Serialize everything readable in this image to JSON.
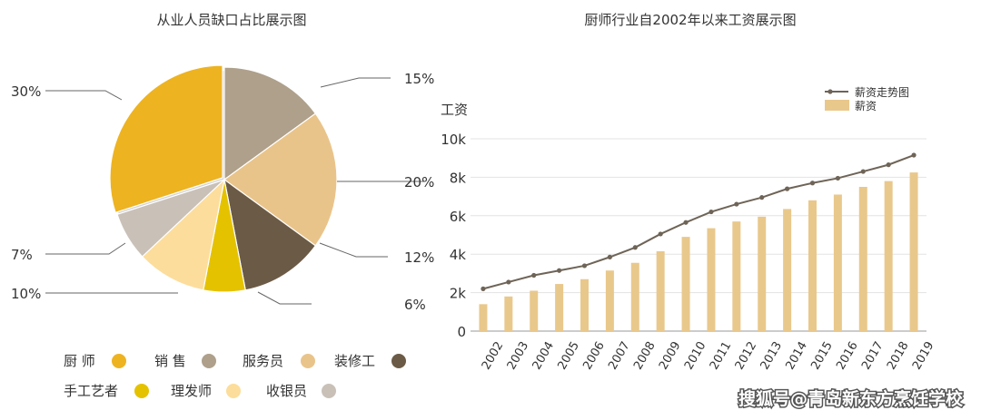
{
  "chart_data": [
    {
      "type": "pie",
      "title": "从业人员缺口占比展示图",
      "slices": [
        {
          "label": "厨 师",
          "value": 30,
          "value_label": "30%",
          "color": "#EDB321"
        },
        {
          "label": "销 售",
          "value": 15,
          "value_label": "15%",
          "color": "#AEA08B"
        },
        {
          "label": "服务员",
          "value": 20,
          "value_label": "20%",
          "color": "#E9C48A"
        },
        {
          "label": "装修工",
          "value": 12,
          "value_label": "12%",
          "color": "#6B5A45"
        },
        {
          "label": "手工艺者",
          "value": 6,
          "value_label": "6%",
          "color": "#E5C200"
        },
        {
          "label": "理发师",
          "value": 10,
          "value_label": "10%",
          "color": "#FCDD9B"
        },
        {
          "label": "收银员",
          "value": 7,
          "value_label": "7%",
          "color": "#C9C0B8"
        }
      ],
      "legend_position": "bottom"
    },
    {
      "type": "bar+line",
      "title": "厨师行业自2002年以来工资展示图",
      "ylabel": "工资",
      "ylim": [
        0,
        10000
      ],
      "yticks": [
        0,
        2000,
        4000,
        6000,
        8000,
        10000
      ],
      "ytick_labels": [
        "0",
        "2k",
        "4k",
        "6k",
        "8k",
        "10k"
      ],
      "grid": true,
      "legend_position": "top-right",
      "categories": [
        "2002",
        "2003",
        "2004",
        "2005",
        "2006",
        "2007",
        "2008",
        "2009",
        "2010",
        "2011",
        "2012",
        "2013",
        "2014",
        "2015",
        "2016",
        "2017",
        "2018",
        "2019"
      ],
      "series": [
        {
          "name": "薪资走势图",
          "kind": "line",
          "color": "#6E6457",
          "values": [
            2200,
            2550,
            2900,
            3150,
            3400,
            3850,
            4350,
            5050,
            5650,
            6200,
            6600,
            6950,
            7400,
            7700,
            7950,
            8300,
            8650,
            9150
          ]
        },
        {
          "name": "薪资",
          "kind": "bar",
          "color": "#E9C88C",
          "values": [
            1400,
            1800,
            2100,
            2450,
            2700,
            3150,
            3550,
            4150,
            4900,
            5350,
            5700,
            5950,
            6350,
            6800,
            7100,
            7500,
            7800,
            8250
          ]
        }
      ]
    }
  ],
  "watermark": "搜狐号@青岛新东方烹饪学校"
}
